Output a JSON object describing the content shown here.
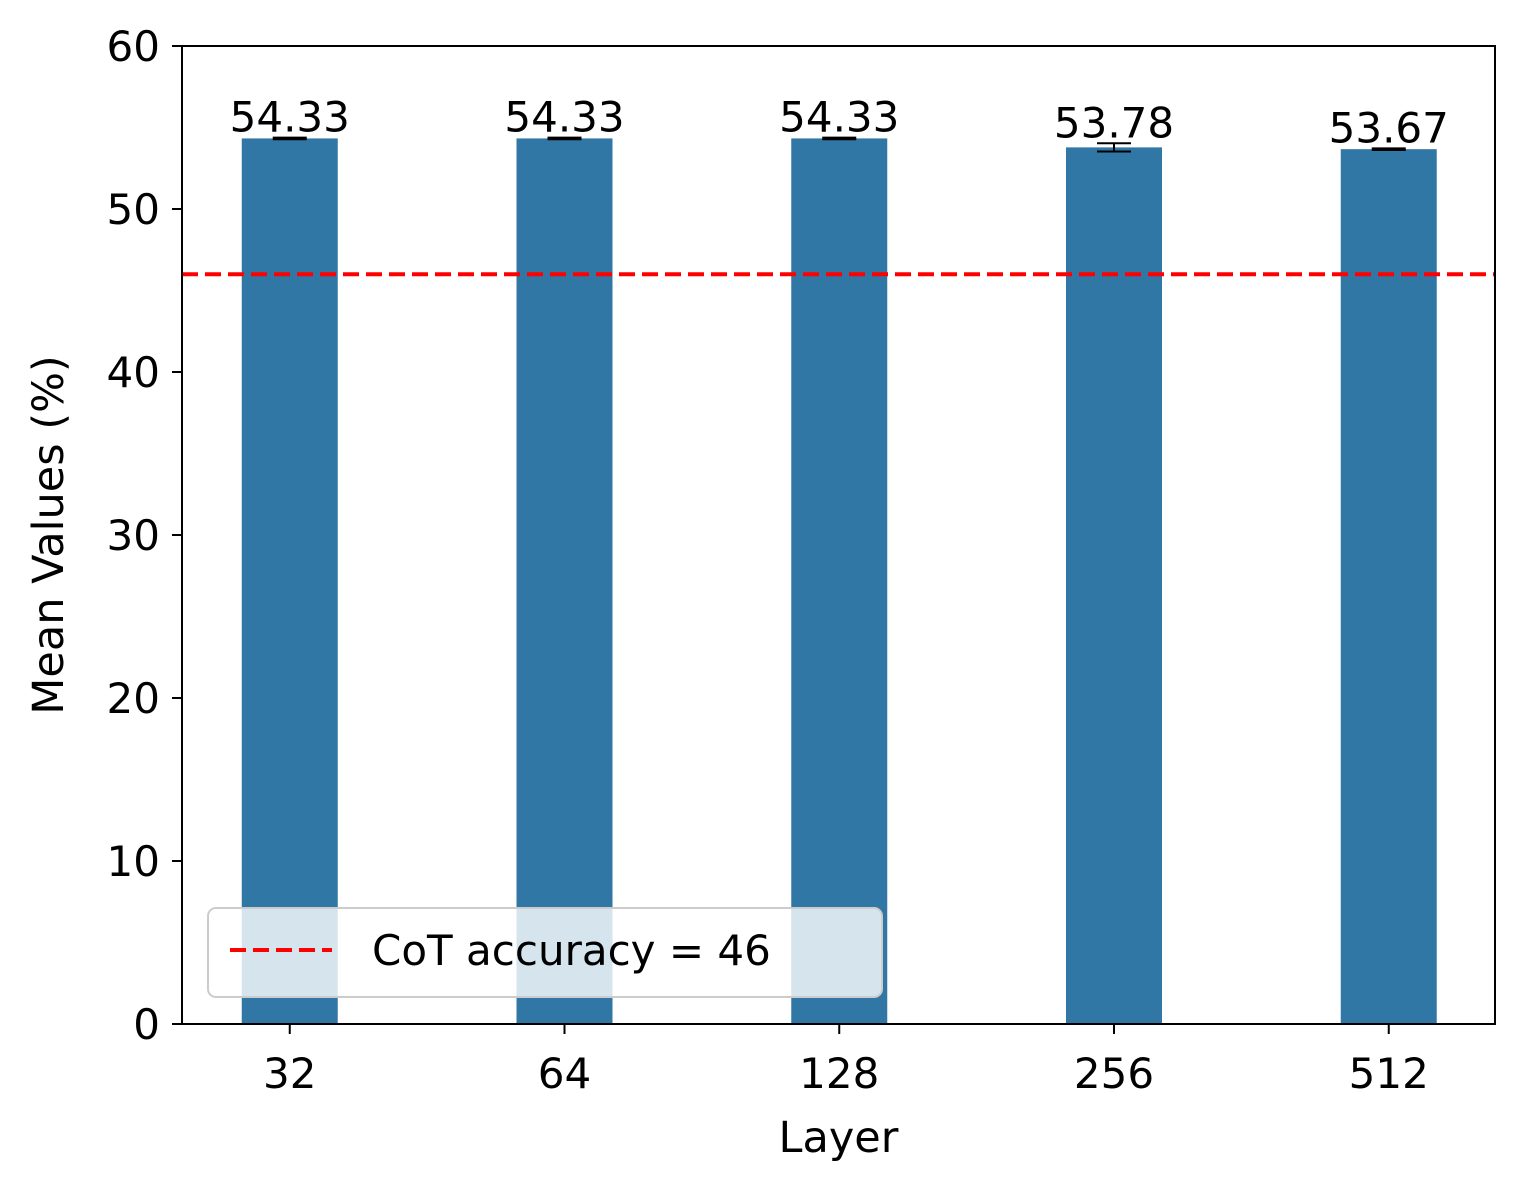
{
  "chart_data": {
    "type": "bar",
    "title": "",
    "xlabel": "Layer",
    "ylabel": "Mean Values (%)",
    "categories": [
      "32",
      "64",
      "128",
      "256",
      "512"
    ],
    "values": [
      54.33,
      54.33,
      54.33,
      53.78,
      53.67
    ],
    "value_labels": [
      "54.33",
      "54.33",
      "54.33",
      "53.78",
      "53.67"
    ],
    "error": [
      0.05,
      0.05,
      0.05,
      0.25,
      0.05
    ],
    "ylim": [
      0,
      60
    ],
    "yticks": [
      0,
      10,
      20,
      30,
      40,
      50,
      60
    ],
    "grid": false,
    "reference_line": {
      "y": 46,
      "style": "dashed"
    },
    "legend": {
      "entries": [
        "CoT accuracy = 46"
      ],
      "placement": "lower-left"
    },
    "colors": {
      "bar": "#3077a5",
      "reference_line": "#ff0000",
      "error_bar": "#000000"
    }
  }
}
